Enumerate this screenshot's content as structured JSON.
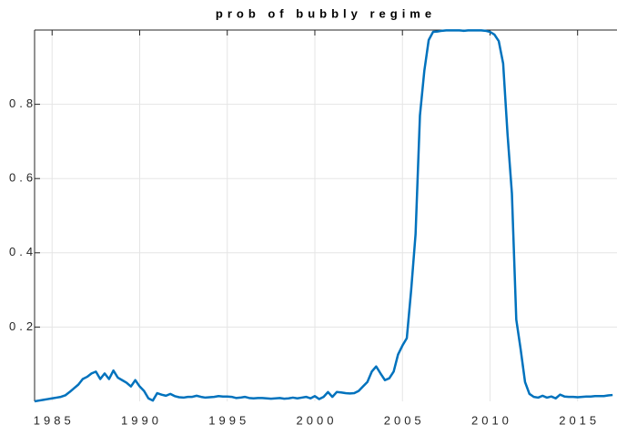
{
  "chart_data": {
    "type": "line",
    "title": "prob of bubbly regime",
    "x": [
      1984,
      1984.25,
      1984.5,
      1984.75,
      1985,
      1985.25,
      1985.5,
      1985.75,
      1986,
      1986.25,
      1986.5,
      1986.75,
      1987,
      1987.25,
      1987.5,
      1987.75,
      1988,
      1988.25,
      1988.5,
      1988.75,
      1989,
      1989.25,
      1989.5,
      1989.75,
      1990,
      1990.25,
      1990.5,
      1990.75,
      1991,
      1991.25,
      1991.5,
      1991.75,
      1992,
      1992.25,
      1992.5,
      1992.75,
      1993,
      1993.25,
      1993.5,
      1993.75,
      1994,
      1994.25,
      1994.5,
      1994.75,
      1995,
      1995.25,
      1995.5,
      1995.75,
      1996,
      1996.25,
      1996.5,
      1996.75,
      1997,
      1997.25,
      1997.5,
      1997.75,
      1998,
      1998.25,
      1998.5,
      1998.75,
      1999,
      1999.25,
      1999.5,
      1999.75,
      2000,
      2000.25,
      2000.5,
      2000.75,
      2001,
      2001.25,
      2001.5,
      2001.75,
      2002,
      2002.25,
      2002.5,
      2002.75,
      2003,
      2003.25,
      2003.5,
      2003.75,
      2004,
      2004.25,
      2004.5,
      2004.75,
      2005,
      2005.25,
      2005.5,
      2005.75,
      2006,
      2006.25,
      2006.5,
      2006.75,
      2007,
      2007.25,
      2007.5,
      2007.75,
      2008,
      2008.25,
      2008.5,
      2008.75,
      2009,
      2009.25,
      2009.5,
      2009.75,
      2010,
      2010.25,
      2010.5,
      2010.75,
      2011,
      2011.25,
      2011.5,
      2011.75,
      2012,
      2012.25,
      2012.5,
      2012.75,
      2013,
      2013.25,
      2013.5,
      2013.75,
      2014,
      2014.25,
      2014.5,
      2014.75,
      2015,
      2015.25,
      2015.5,
      2015.75,
      2016,
      2016.25,
      2016.5,
      2016.75,
      2017
    ],
    "values": [
      0.0,
      0.002,
      0.004,
      0.006,
      0.008,
      0.01,
      0.012,
      0.016,
      0.025,
      0.035,
      0.045,
      0.06,
      0.066,
      0.075,
      0.08,
      0.06,
      0.075,
      0.06,
      0.083,
      0.064,
      0.057,
      0.05,
      0.04,
      0.057,
      0.04,
      0.028,
      0.008,
      0.002,
      0.022,
      0.018,
      0.015,
      0.02,
      0.014,
      0.011,
      0.01,
      0.012,
      0.012,
      0.015,
      0.012,
      0.01,
      0.011,
      0.012,
      0.014,
      0.013,
      0.013,
      0.012,
      0.009,
      0.01,
      0.012,
      0.009,
      0.008,
      0.009,
      0.009,
      0.008,
      0.007,
      0.008,
      0.009,
      0.007,
      0.008,
      0.01,
      0.008,
      0.01,
      0.012,
      0.008,
      0.014,
      0.006,
      0.012,
      0.025,
      0.012,
      0.025,
      0.024,
      0.022,
      0.021,
      0.022,
      0.028,
      0.04,
      0.052,
      0.08,
      0.094,
      0.075,
      0.057,
      0.062,
      0.08,
      0.126,
      0.15,
      0.17,
      0.3,
      0.45,
      0.77,
      0.89,
      0.973,
      0.995,
      0.996,
      0.998,
      0.999,
      0.999,
      0.999,
      0.999,
      0.998,
      0.999,
      0.999,
      0.999,
      0.999,
      0.998,
      0.995,
      0.988,
      0.97,
      0.91,
      0.72,
      0.56,
      0.22,
      0.14,
      0.052,
      0.02,
      0.012,
      0.01,
      0.015,
      0.01,
      0.013,
      0.008,
      0.018,
      0.013,
      0.012,
      0.012,
      0.011,
      0.012,
      0.013,
      0.013,
      0.014,
      0.014,
      0.014,
      0.016,
      0.017
    ],
    "color": "#0072bd",
    "xlim": [
      1984,
      2017.25
    ],
    "xticks": [
      1985,
      1990,
      1995,
      2000,
      2005,
      2010,
      2015
    ],
    "ylim": [
      0,
      1
    ],
    "yticks": [
      0.2,
      0.4,
      0.6,
      0.8
    ],
    "grid": true
  }
}
